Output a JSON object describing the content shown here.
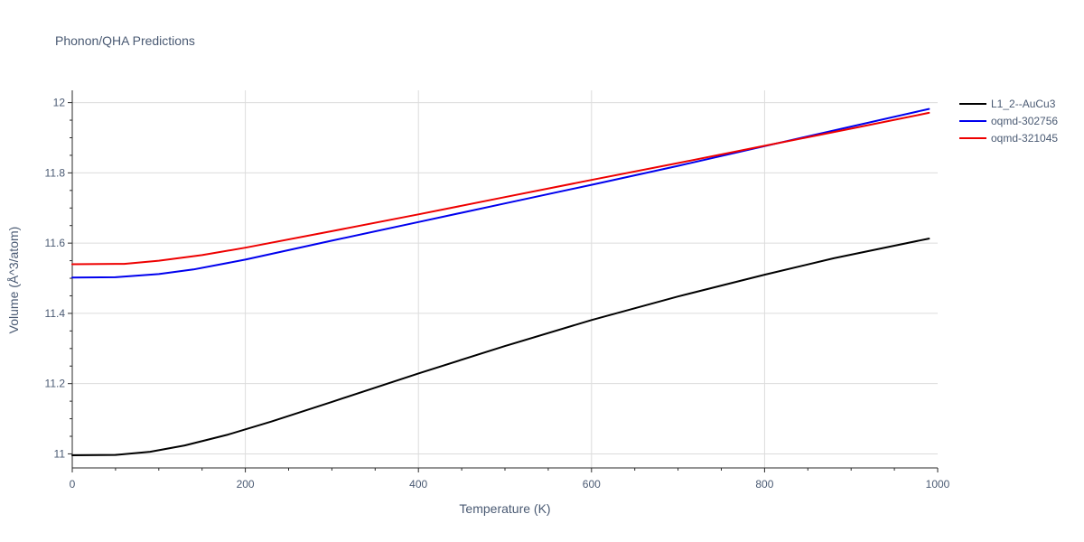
{
  "chart_data": {
    "type": "line",
    "title": "Phonon/QHA Predictions",
    "xlabel": "Temperature (K)",
    "ylabel": "Volume (Å^3/atom)",
    "xlim": [
      0,
      1000
    ],
    "ylim": [
      10.96,
      12.035
    ],
    "x_ticks": [
      0,
      200,
      400,
      600,
      800,
      1000
    ],
    "x_tick_labels": [
      "0",
      "200",
      "400",
      "600",
      "800",
      "1000"
    ],
    "y_ticks": [
      11,
      11.2,
      11.4,
      11.6,
      11.8,
      12
    ],
    "y_tick_labels": [
      "11",
      "11.2",
      "11.4",
      "11.6",
      "11.8",
      "12"
    ],
    "grid": true,
    "legend_position": "top-right",
    "series": [
      {
        "name": "L1_2--AuCu3",
        "color": "#000000",
        "x": [
          0,
          50,
          90,
          130,
          180,
          230,
          300,
          400,
          500,
          600,
          700,
          800,
          880,
          990
        ],
        "y": [
          10.996,
          10.997,
          11.006,
          11.024,
          11.055,
          11.092,
          11.148,
          11.229,
          11.307,
          11.381,
          11.448,
          11.51,
          11.557,
          11.613
        ]
      },
      {
        "name": "oqmd-302756",
        "color": "#0000ee",
        "x": [
          0,
          50,
          100,
          140,
          200,
          300,
          400,
          500,
          600,
          700,
          800,
          900,
          990
        ],
        "y": [
          11.502,
          11.503,
          11.512,
          11.525,
          11.553,
          11.607,
          11.66,
          11.713,
          11.766,
          11.82,
          11.876,
          11.932,
          11.982
        ]
      },
      {
        "name": "oqmd-321045",
        "color": "#ee0000",
        "x": [
          0,
          60,
          100,
          150,
          200,
          300,
          400,
          500,
          600,
          700,
          800,
          900,
          990
        ],
        "y": [
          11.54,
          11.541,
          11.55,
          11.566,
          11.587,
          11.634,
          11.682,
          11.731,
          11.78,
          11.828,
          11.877,
          11.926,
          11.971
        ]
      }
    ]
  }
}
